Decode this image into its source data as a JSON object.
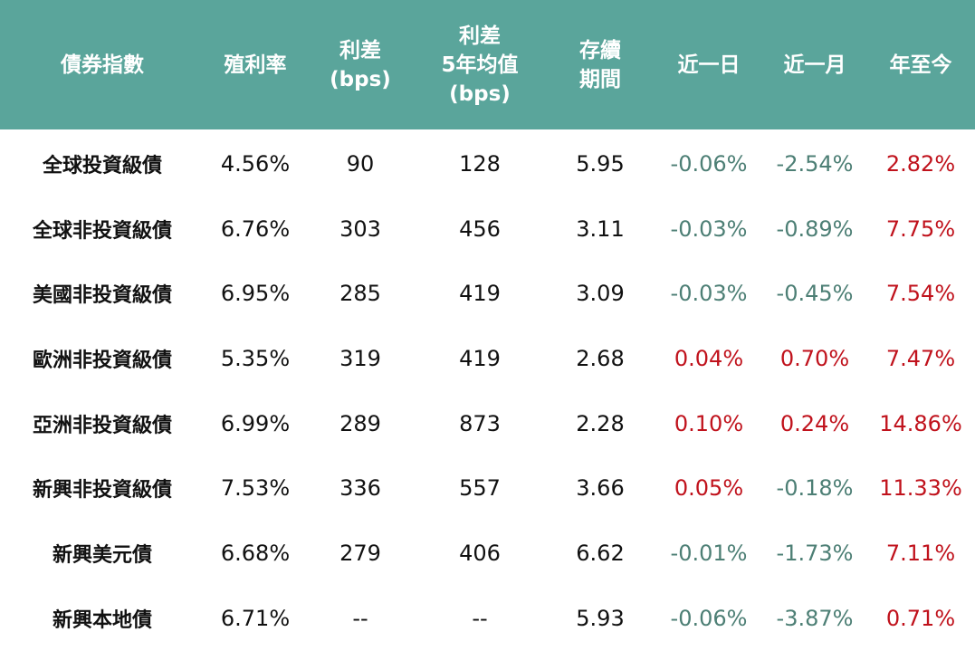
{
  "table": {
    "header": [
      [
        "債券指數"
      ],
      [
        "殖利率"
      ],
      [
        "利差",
        "(bps)"
      ],
      [
        "利差",
        "5年均值",
        "(bps)"
      ],
      [
        "存續",
        "期間"
      ],
      [
        "近一日"
      ],
      [
        "近一月"
      ],
      [
        "年至今"
      ]
    ],
    "rows": [
      [
        "全球投資級債",
        "4.56%",
        "90",
        "128",
        "5.95",
        "-0.06%",
        "-2.54%",
        "2.82%"
      ],
      [
        "全球非投資級債",
        "6.76%",
        "303",
        "456",
        "3.11",
        "-0.03%",
        "-0.89%",
        "7.75%"
      ],
      [
        "美國非投資級債",
        "6.95%",
        "285",
        "419",
        "3.09",
        "-0.03%",
        "-0.45%",
        "7.54%"
      ],
      [
        "歐洲非投資級債",
        "5.35%",
        "319",
        "419",
        "2.68",
        "0.04%",
        "0.70%",
        "7.47%"
      ],
      [
        "亞洲非投資級債",
        "6.99%",
        "289",
        "873",
        "2.28",
        "0.10%",
        "0.24%",
        "14.86%"
      ],
      [
        "新興非投資級債",
        "7.53%",
        "336",
        "557",
        "3.66",
        "0.05%",
        "-0.18%",
        "11.33%"
      ],
      [
        "新興美元債",
        "6.68%",
        "279",
        "406",
        "6.62",
        "-0.01%",
        "-1.73%",
        "7.11%"
      ],
      [
        "新興本地債",
        "6.71%",
        "--",
        "--",
        "5.93",
        "-0.06%",
        "-3.87%",
        "0.71%"
      ]
    ],
    "header_color": "#5aa59b",
    "negative_color": "#4d7f75",
    "positive_color": "#c0121c"
  }
}
